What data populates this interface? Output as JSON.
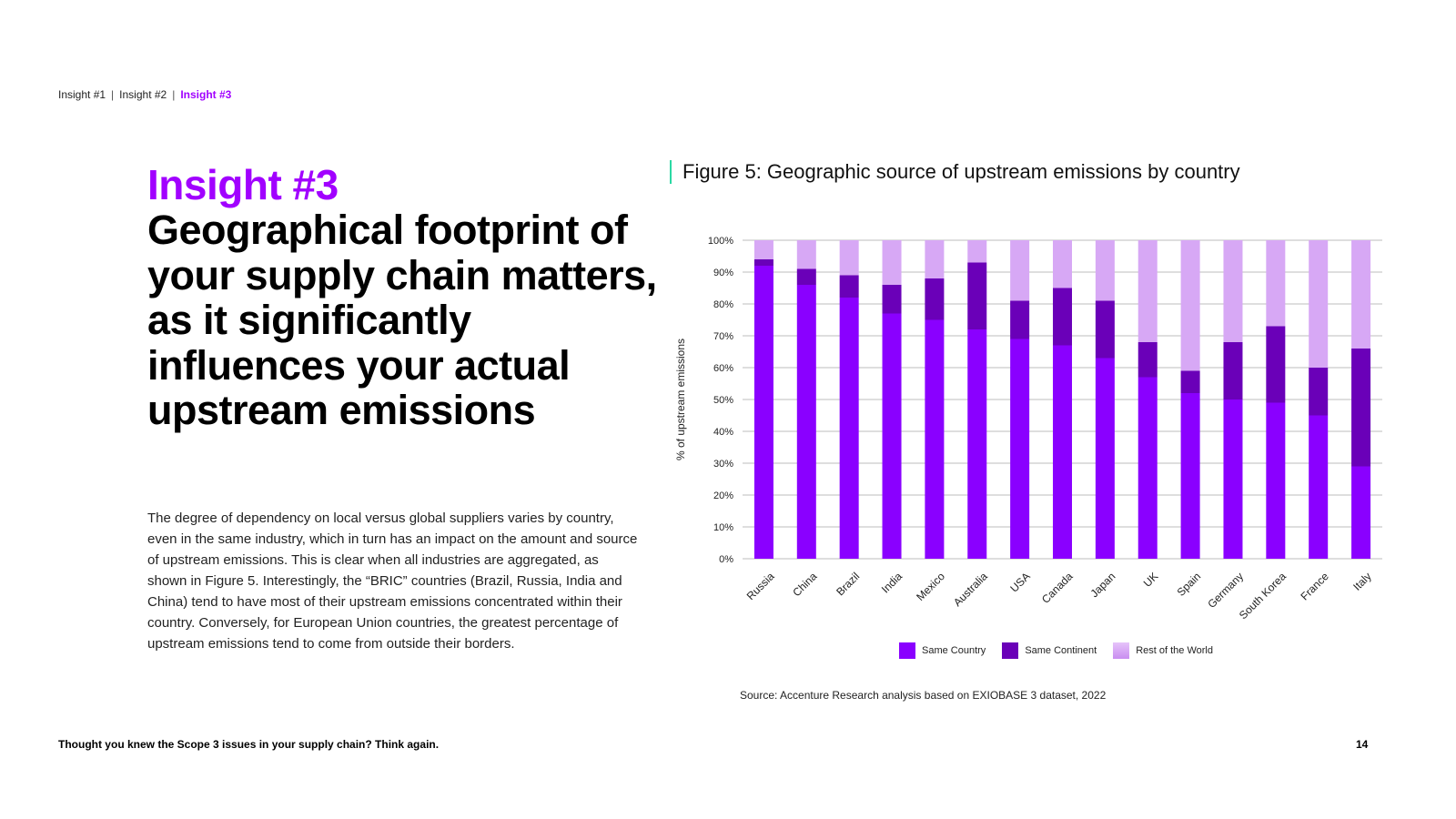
{
  "breadcrumb": {
    "items": [
      "Insight #1",
      "Insight #2",
      "Insight #3"
    ],
    "separator": "|",
    "active_index": 2
  },
  "insight_label": "Insight #3",
  "headline": "Geographical footprint of your supply chain matters, as it significantly influences your actual upstream emissions",
  "body_text": "The degree of dependency on local versus global suppliers varies by country, even in the same industry, which in turn has an impact on the amount and source of upstream emissions. This is clear when all industries are aggregated, as shown in Figure 5. Interestingly, the “BRIC” countries (Brazil, Russia, India and China) tend to have most of their upstream emissions concentrated within their country. Conversely, for European Union countries, the greatest percentage of upstream emissions tend to come from outside their borders.",
  "figure_title": "Figure 5: Geographic source of upstream emissions by country",
  "source": "Source: Accenture Research analysis based on EXIOBASE 3 dataset, 2022",
  "footer": {
    "title": "Thought you knew the Scope 3 issues in your supply chain? Think again.",
    "page_number": "14"
  },
  "colors": {
    "accent": "#a100ff",
    "same_country": "#8a00ff",
    "same_continent": "#6a00b8",
    "rest_of_world": "#d7a8f5",
    "figure_rule": "#2bd9a4",
    "gridline": "#bdbdbd"
  },
  "chart_data": {
    "type": "bar",
    "stacked": true,
    "title": "Figure 5: Geographic source of upstream emissions by country",
    "xlabel": "",
    "ylabel": "% of upstream emissions",
    "ylim": [
      0,
      100
    ],
    "yticks": [
      "0%",
      "10%",
      "20%",
      "30%",
      "40%",
      "50%",
      "60%",
      "70%",
      "80%",
      "90%",
      "100%"
    ],
    "grid": true,
    "legend_position": "bottom",
    "categories": [
      "Russia",
      "China",
      "Brazil",
      "India",
      "Mexico",
      "Australia",
      "USA",
      "Canada",
      "Japan",
      "UK",
      "Spain",
      "Germany",
      "South Korea",
      "France",
      "Italy"
    ],
    "series": [
      {
        "name": "Same Country",
        "values": [
          92,
          86,
          82,
          77,
          75,
          72,
          69,
          67,
          63,
          57,
          52,
          50,
          49,
          45,
          29
        ]
      },
      {
        "name": "Same Continent",
        "values": [
          2,
          5,
          7,
          9,
          13,
          21,
          12,
          18,
          18,
          11,
          7,
          18,
          24,
          15,
          37
        ]
      },
      {
        "name": "Rest of the World",
        "values": [
          6,
          9,
          11,
          14,
          12,
          7,
          19,
          15,
          19,
          32,
          41,
          32,
          27,
          40,
          34
        ]
      }
    ]
  }
}
